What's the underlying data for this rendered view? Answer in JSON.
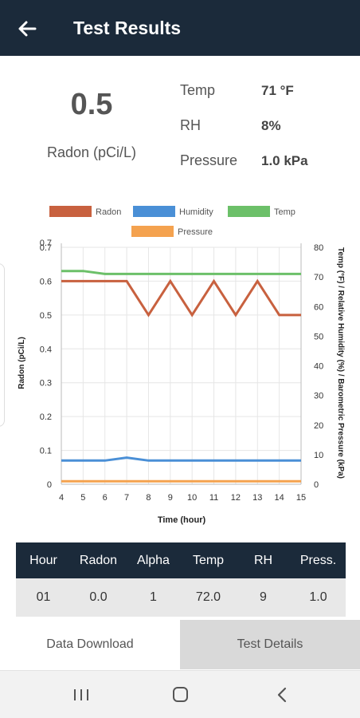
{
  "header": {
    "title": "Test Results",
    "back_icon": "arrow-left-icon"
  },
  "reading": {
    "value": "0.5",
    "unit": "Radon (pCi/L)"
  },
  "stats": [
    {
      "label": "Temp",
      "value": "71 °F"
    },
    {
      "label": "RH",
      "value": "8%"
    },
    {
      "label": "Pressure",
      "value": "1.0 kPa"
    }
  ],
  "chart_data": {
    "type": "line",
    "x": [
      4,
      5,
      6,
      7,
      8,
      9,
      10,
      11,
      12,
      13,
      14,
      15
    ],
    "xlabel": "Time (hour)",
    "ylabel": "Radon (pCi/L)",
    "y2label": "Temp (°F) / Relative Humidity (%) / Barometric Pressure (kPa)",
    "ylim": [
      0,
      0.7
    ],
    "y2lim": [
      0,
      80
    ],
    "y_ticks": [
      "0",
      "0.1",
      "0.2",
      "0.3",
      "0.4",
      "0.5",
      "0.6",
      "0.7",
      "0.7"
    ],
    "y2_ticks": [
      "0",
      "10",
      "20",
      "30",
      "40",
      "50",
      "60",
      "70",
      "80"
    ],
    "x_ticks": [
      "4",
      "5",
      "6",
      "7",
      "8",
      "9",
      "10",
      "11",
      "12",
      "13",
      "14",
      "15"
    ],
    "grid": true,
    "legend_placement": "top",
    "series": [
      {
        "name": "Radon",
        "axis": "left",
        "color": "#c8613f",
        "values": [
          0.6,
          0.6,
          0.6,
          0.6,
          0.5,
          0.6,
          0.5,
          0.6,
          0.5,
          0.6,
          0.5,
          0.5
        ]
      },
      {
        "name": "Humidity",
        "axis": "right",
        "color": "#4a8fd6",
        "values": [
          8,
          8,
          8,
          9,
          8,
          8,
          8,
          8,
          8,
          8,
          8,
          8
        ]
      },
      {
        "name": "Temp",
        "axis": "right",
        "color": "#6cc069",
        "values": [
          72,
          72,
          71,
          71,
          71,
          71,
          71,
          71,
          71,
          71,
          71,
          71
        ]
      },
      {
        "name": "Pressure",
        "axis": "right",
        "color": "#f4a24f",
        "values": [
          1,
          1,
          1,
          1,
          1,
          1,
          1,
          1,
          1,
          1,
          1,
          1
        ]
      }
    ]
  },
  "table": {
    "columns": [
      "Hour",
      "Radon",
      "Alpha",
      "Temp",
      "RH",
      "Press."
    ],
    "rows": [
      [
        "01",
        "0.0",
        "1",
        "72.0",
        "9",
        "1.0"
      ]
    ]
  },
  "tabs": {
    "download": "Data Download",
    "details": "Test Details"
  },
  "nav": {
    "recents_icon": "recent-apps-icon",
    "home_icon": "home-icon",
    "back_icon": "back-chevron-icon"
  },
  "colors": {
    "header_bg": "#1b2a3a",
    "radon": "#c8613f",
    "humidity": "#4a8fd6",
    "temp": "#6cc069",
    "pressure": "#f4a24f",
    "inactive_tab": "#d9d9d9"
  }
}
